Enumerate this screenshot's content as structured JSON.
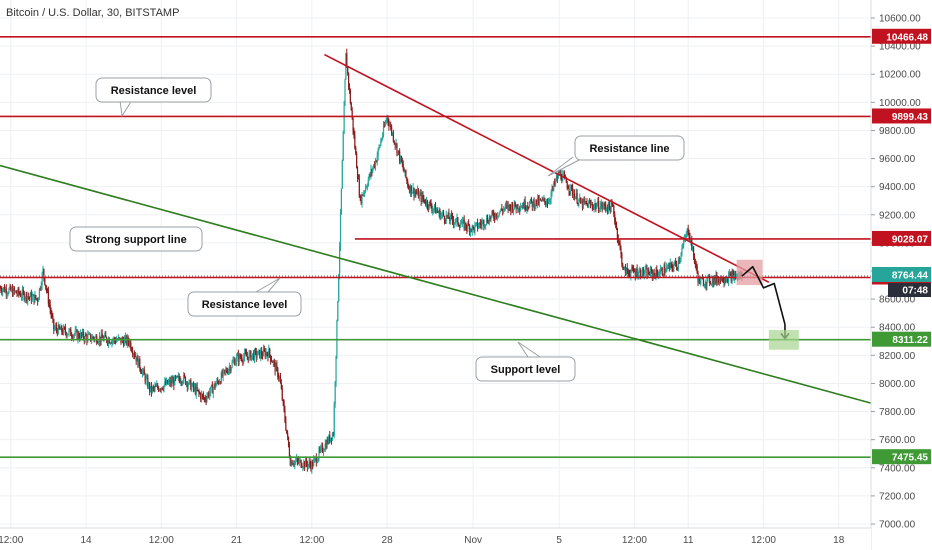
{
  "title": "Bitcoin / U.S. Dollar, 30, BITSTAMP",
  "colors": {
    "resistance": "#c1121f",
    "support": "#3f9a36",
    "support_line": "#2e7d1f",
    "grid": "#eef0f3",
    "candle_up": "#26a69a",
    "candle_down": "#8b1c1c",
    "current": "#26a69a",
    "timer": "#2a2e39"
  },
  "chart_data": {
    "type": "candlestick",
    "title": "Bitcoin / U.S. Dollar, 30, BITSTAMP",
    "ylim": [
      6940,
      10720
    ],
    "y_ticks": [
      "10600.00",
      "10400.00",
      "10200.00",
      "10000.00",
      "9800.00",
      "9600.00",
      "9400.00",
      "9200.00",
      "9000.00",
      "8800.00",
      "8600.00",
      "8400.00",
      "8200.00",
      "8000.00",
      "7800.00",
      "7600.00",
      "7400.00",
      "7200.00",
      "7000.00"
    ],
    "x_ticks": [
      "12:00",
      "14",
      "12:00",
      "21",
      "12:00",
      "28",
      "Nov",
      "5",
      "12:00",
      "11",
      "12:00",
      "18"
    ],
    "horizontal_levels": [
      {
        "value": 10466.48,
        "label": "10466.48",
        "kind": "resistance"
      },
      {
        "value": 9899.43,
        "label": "9899.43",
        "kind": "resistance"
      },
      {
        "value": 9028.07,
        "label": "9028.07",
        "kind": "resistance"
      },
      {
        "value": 8753.71,
        "label": "8753.71",
        "kind": "resistance"
      },
      {
        "value": 8311.22,
        "label": "8311.22",
        "kind": "support"
      },
      {
        "value": 7475.45,
        "label": "7475.45",
        "kind": "support"
      }
    ],
    "current_price": {
      "value": 8764.44,
      "label": "8764.44",
      "timer": "07:48"
    },
    "trendlines": [
      {
        "name": "Resistance line",
        "points": [
          [
            "Oct 25 02:00",
            10340
          ],
          [
            "Nov 14 18:00",
            8720
          ]
        ]
      },
      {
        "name": "Strong support line",
        "points": [
          [
            "Oct 10 00:00",
            9550
          ],
          [
            "Nov 19 12:00",
            7860
          ]
        ]
      }
    ],
    "annotations": [
      {
        "text": "Resistance level",
        "x": "Oct 15 12:00"
      },
      {
        "text": "Resistance level",
        "x": "Oct 19 00:00"
      },
      {
        "text": "Strong support line",
        "x": "Oct 14 12:00"
      },
      {
        "text": "Resistance line",
        "x": "Nov 8 00:00"
      },
      {
        "text": "Support level",
        "x": "Nov 2 12:00"
      }
    ],
    "price_path_approx": [
      {
        "x": "Oct 10 00:00",
        "y": 8680
      },
      {
        "x": "Oct 11 18:00",
        "y": 8600
      },
      {
        "x": "Oct 12 00:00",
        "y": 8800
      },
      {
        "x": "Oct 12 12:00",
        "y": 8390
      },
      {
        "x": "Oct 14 00:00",
        "y": 8330
      },
      {
        "x": "Oct 16 00:00",
        "y": 8300
      },
      {
        "x": "Oct 17 00:00",
        "y": 7950
      },
      {
        "x": "Oct 18 12:00",
        "y": 8040
      },
      {
        "x": "Oct 19 12:00",
        "y": 7890
      },
      {
        "x": "Oct 21 00:00",
        "y": 8180
      },
      {
        "x": "Oct 22 12:00",
        "y": 8220
      },
      {
        "x": "Oct 23 00:00",
        "y": 8040
      },
      {
        "x": "Oct 23 12:00",
        "y": 7450
      },
      {
        "x": "Oct 24 12:00",
        "y": 7420
      },
      {
        "x": "Oct 25 12:00",
        "y": 7650
      },
      {
        "x": "Oct 26 02:00",
        "y": 10330
      },
      {
        "x": "Oct 26 18:00",
        "y": 9300
      },
      {
        "x": "Oct 27 12:00",
        "y": 9600
      },
      {
        "x": "Oct 28 00:00",
        "y": 9900
      },
      {
        "x": "Oct 29 00:00",
        "y": 9400
      },
      {
        "x": "Oct 30 12:00",
        "y": 9200
      },
      {
        "x": "Nov 1 00:00",
        "y": 9100
      },
      {
        "x": "Nov 2 12:00",
        "y": 9250
      },
      {
        "x": "Nov 4 12:00",
        "y": 9300
      },
      {
        "x": "Nov 5 00:00",
        "y": 9500
      },
      {
        "x": "Nov 6 00:00",
        "y": 9280
      },
      {
        "x": "Nov 7 12:00",
        "y": 9250
      },
      {
        "x": "Nov 8 00:00",
        "y": 8800
      },
      {
        "x": "Nov 9 12:00",
        "y": 8780
      },
      {
        "x": "Nov 10 12:00",
        "y": 8850
      },
      {
        "x": "Nov 11 00:00",
        "y": 9100
      },
      {
        "x": "Nov 11 12:00",
        "y": 8720
      },
      {
        "x": "Nov 13 00:00",
        "y": 8760
      },
      {
        "x": "Nov 13 12:00",
        "y": 8764
      }
    ],
    "forecast": {
      "path": [
        [
          "Nov 13 12:00",
          8764
        ],
        [
          "Nov 14 00:00",
          8830
        ],
        [
          "Nov 14 12:00",
          8680
        ],
        [
          "Nov 15 00:00",
          8711
        ],
        [
          "Nov 15 12:00",
          8420
        ]
      ],
      "target": 8311.22
    }
  }
}
